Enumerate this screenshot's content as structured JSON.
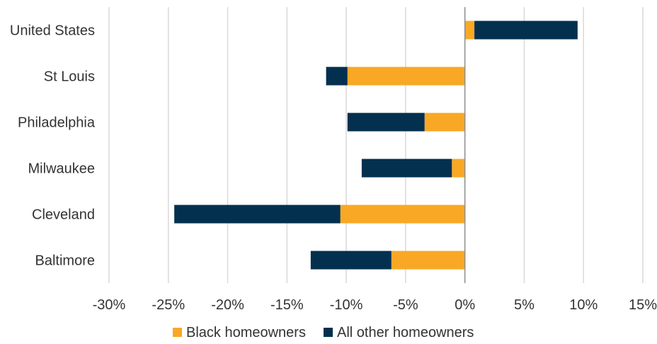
{
  "chart_data": {
    "type": "bar",
    "orientation": "horizontal",
    "stacked": true,
    "title": "",
    "xlabel": "",
    "ylabel": "",
    "categories": [
      "United States",
      "St Louis",
      "Philadelphia",
      "Milwaukee",
      "Cleveland",
      "Baltimore"
    ],
    "series": [
      {
        "name": "Black homeowners",
        "color": "#f9a825",
        "values": [
          0.8,
          -9.9,
          -3.4,
          -1.1,
          -10.5,
          -6.2
        ]
      },
      {
        "name": "All other homeowners",
        "color": "#04304f",
        "values": [
          8.7,
          -1.8,
          -6.5,
          -7.6,
          -14.0,
          -6.8
        ]
      }
    ],
    "xlim": [
      -30,
      15
    ],
    "xticks": [
      -30,
      -25,
      -20,
      -15,
      -10,
      -5,
      0,
      5,
      10,
      15
    ],
    "xtick_labels": [
      "-30%",
      "-25%",
      "-20%",
      "-15%",
      "-10%",
      "-5%",
      "0%",
      "5%",
      "10%",
      "15%"
    ],
    "grid": "vertical",
    "legend_position": "bottom"
  }
}
